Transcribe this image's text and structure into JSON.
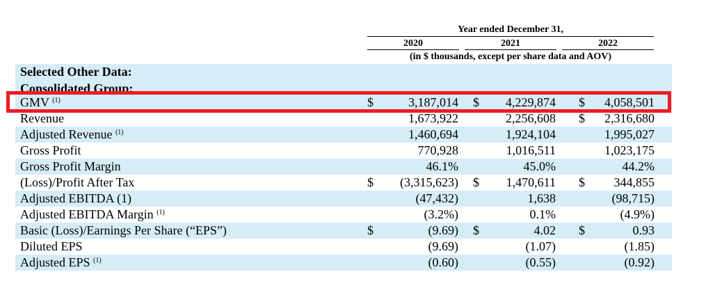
{
  "header": {
    "period": "Year ended December 31,",
    "years": [
      "2020",
      "2021",
      "2022"
    ],
    "units": "(in $ thousands, except per share data and AOV)"
  },
  "sections": {
    "selected": "Selected Other Data:",
    "consolidated": "Consolidated Group:"
  },
  "rows": [
    {
      "label": "GMV",
      "note": "(1)",
      "c2020": "$",
      "v2020": "3,187,014",
      "c2021": "$",
      "v2021": "4,229,874",
      "c2022": "$",
      "v2022": "4,058,501"
    },
    {
      "label": "Revenue",
      "note": "",
      "c2020": "",
      "v2020": "1,673,922",
      "c2021": "",
      "v2021": "2,256,608",
      "c2022": "$",
      "v2022": "2,316,680"
    },
    {
      "label": "Adjusted Revenue",
      "note": "(1)",
      "c2020": "",
      "v2020": "1,460,694",
      "c2021": "",
      "v2021": "1,924,104",
      "c2022": "",
      "v2022": "1,995,027"
    },
    {
      "label": "Gross Profit",
      "note": "",
      "c2020": "",
      "v2020": "770,928",
      "c2021": "",
      "v2021": "1,016,511",
      "c2022": "",
      "v2022": "1,023,175"
    },
    {
      "label": "Gross Profit Margin",
      "note": "",
      "c2020": "",
      "v2020": "46.1%",
      "c2021": "",
      "v2021": "45.0%",
      "c2022": "",
      "v2022": "44.2%"
    },
    {
      "label": "(Loss)/Profit After Tax",
      "note": "",
      "c2020": "$",
      "v2020": "(3,315,623)",
      "c2021": "$",
      "v2021": "1,470,611",
      "c2022": "$",
      "v2022": "344,855"
    },
    {
      "label": "Adjusted EBITDA (1)",
      "note": "",
      "c2020": "",
      "v2020": "(47,432)",
      "c2021": "",
      "v2021": "1,638",
      "c2022": "",
      "v2022": "(98,715)"
    },
    {
      "label": "Adjusted EBITDA Margin",
      "note": "(1)",
      "c2020": "",
      "v2020": "(3.2%)",
      "c2021": "",
      "v2021": "0.1%",
      "c2022": "",
      "v2022": "(4.9%)"
    },
    {
      "label": "Basic (Loss)/Earnings Per Share (“EPS”)",
      "note": "",
      "c2020": "$",
      "v2020": "(9.69)",
      "c2021": "$",
      "v2021": "4.02",
      "c2022": "$",
      "v2022": "0.93"
    },
    {
      "label": "Diluted EPS",
      "note": "",
      "c2020": "",
      "v2020": "(9.69)",
      "c2021": "",
      "v2021": "(1.07)",
      "c2022": "",
      "v2022": "(1.85)"
    },
    {
      "label": "Adjusted EPS",
      "note": "(1)",
      "c2020": "",
      "v2020": "(0.60)",
      "c2021": "",
      "v2021": "(0.55)",
      "c2022": "",
      "v2022": "(0.92)"
    }
  ],
  "highlight": {
    "color": "#ee1c24",
    "row": "GMV"
  },
  "colors": {
    "band": "#d6ecf7"
  }
}
